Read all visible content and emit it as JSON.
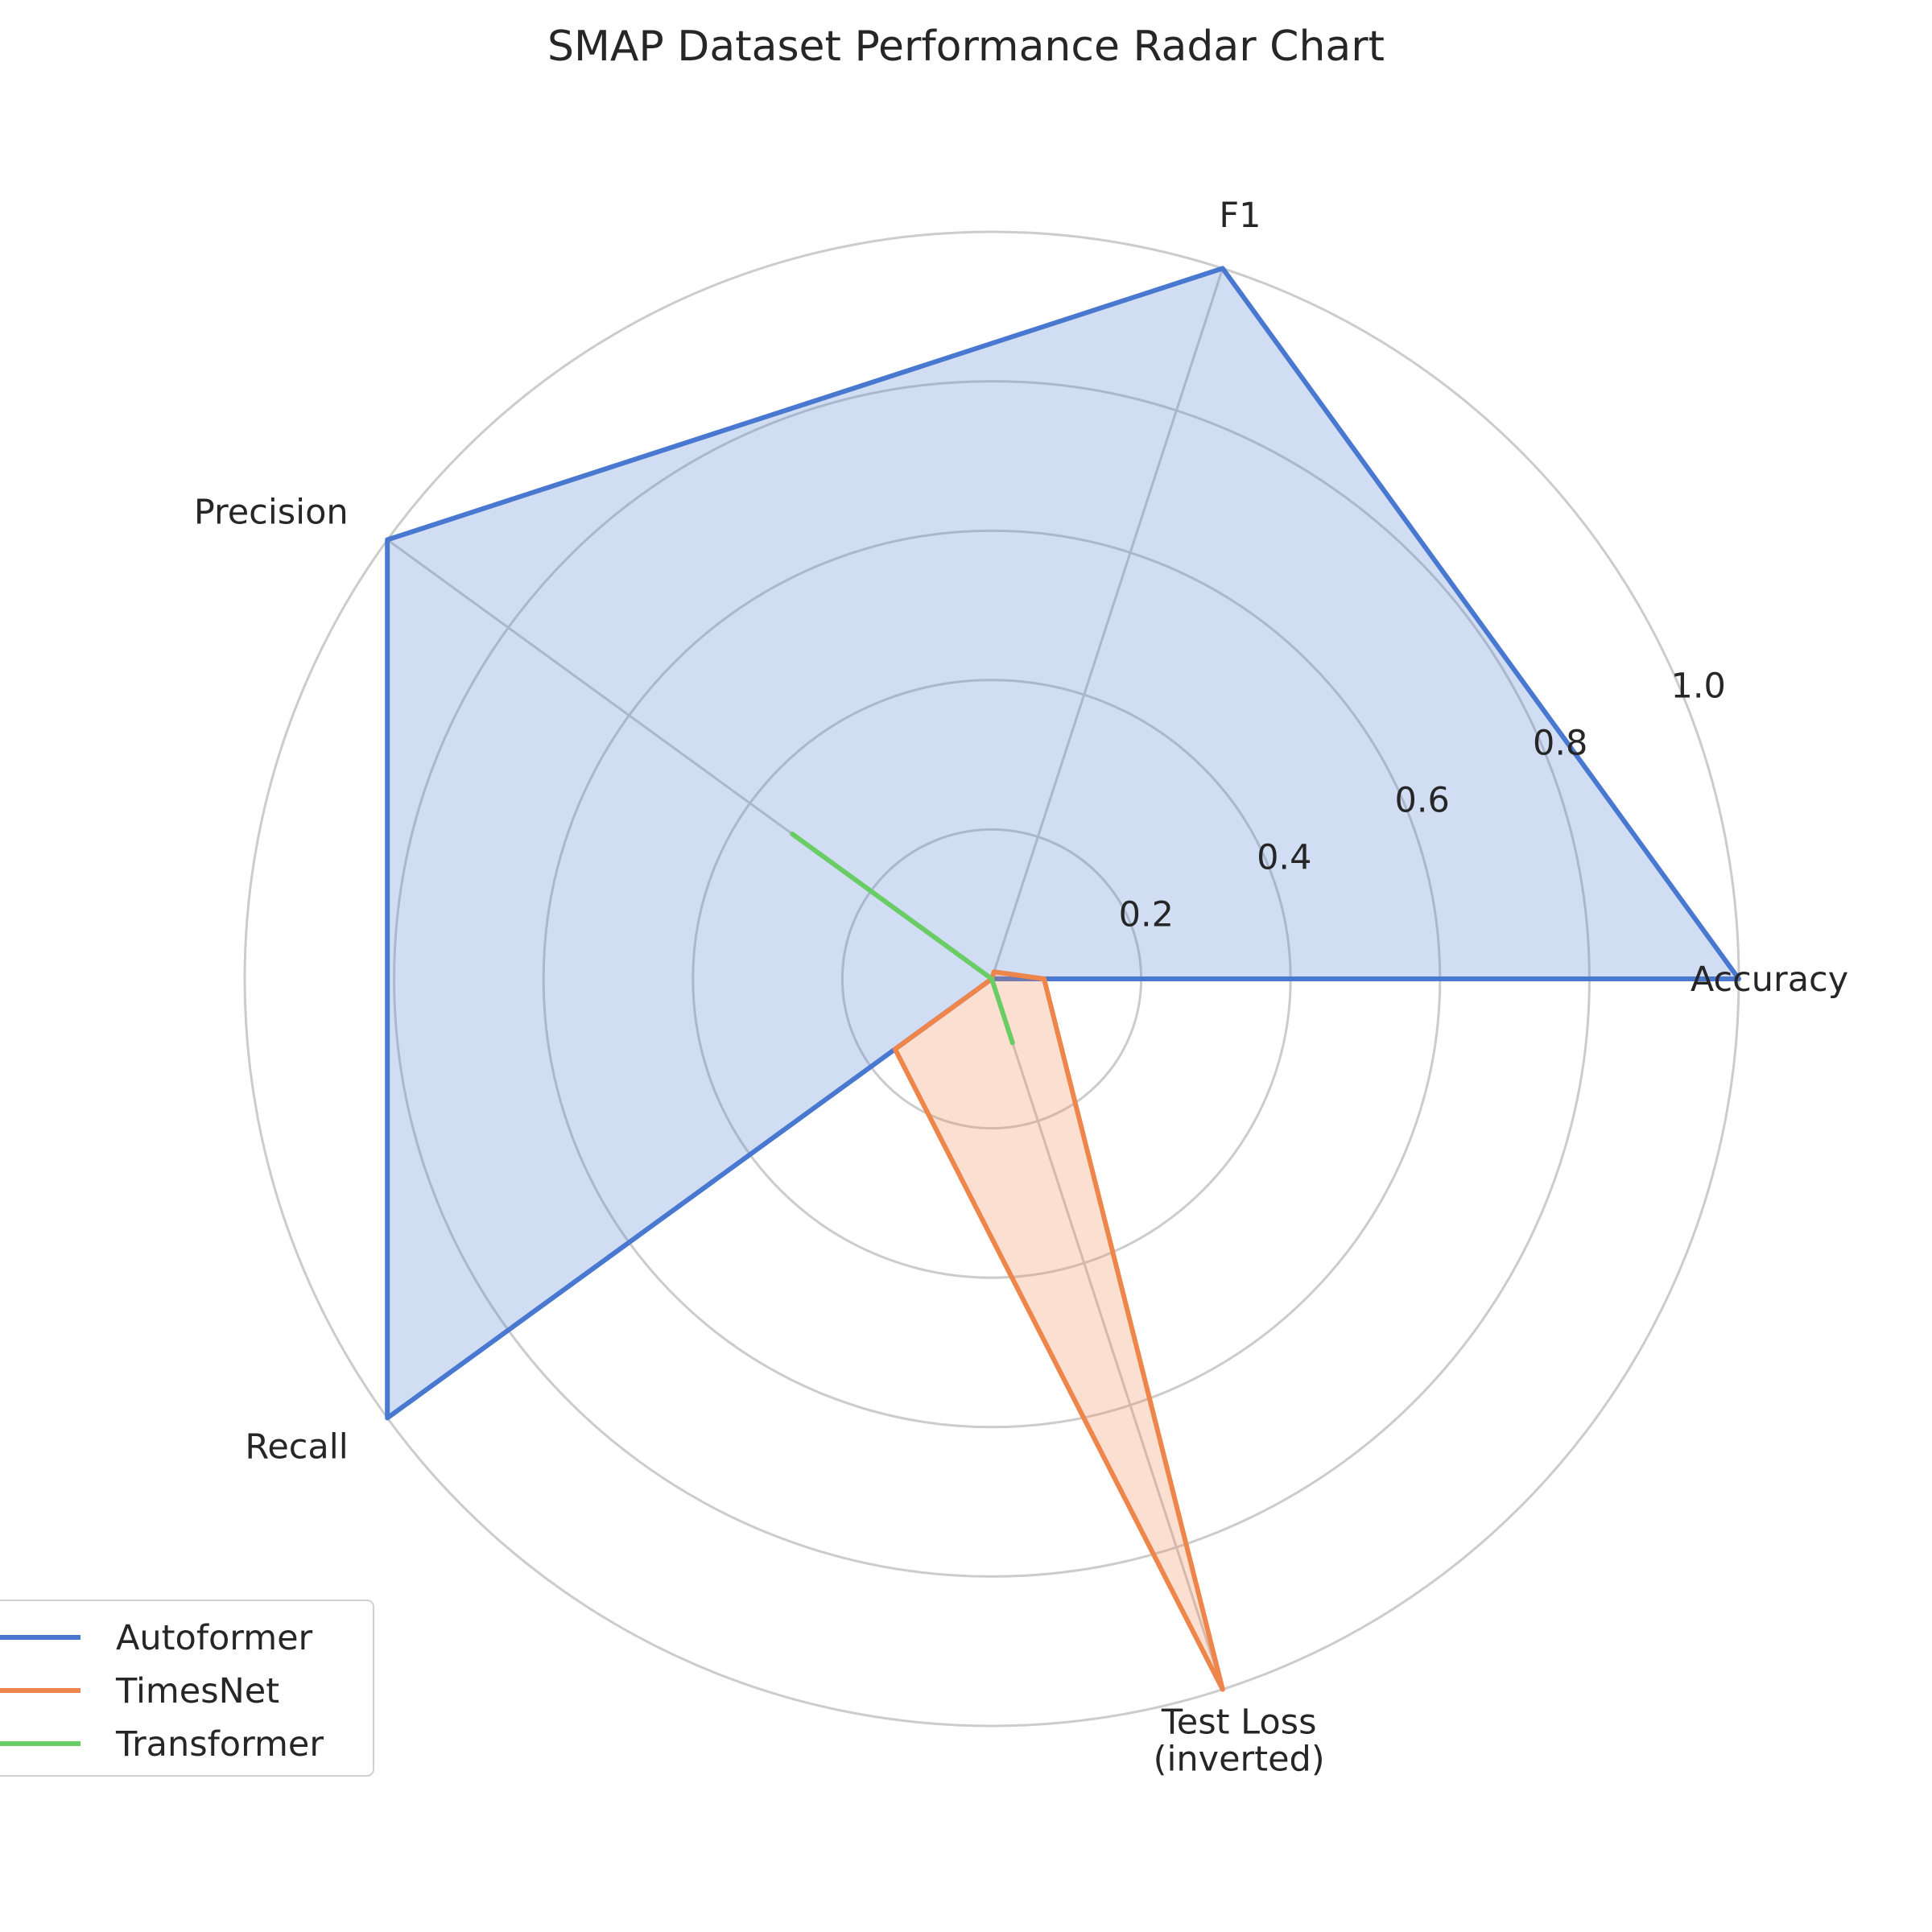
{
  "chart_data": {
    "type": "radar",
    "title": "SMAP Dataset Performance Radar Chart",
    "axes": [
      "Accuracy",
      "F1",
      "Precision",
      "Recall",
      "Test Loss\n(inverted)"
    ],
    "rlim": [
      0,
      1.0
    ],
    "rticks": [
      "0.2",
      "0.4",
      "0.6",
      "0.8",
      "1.0"
    ],
    "rtick_values": [
      0.2,
      0.4,
      0.6,
      0.8,
      1.0
    ],
    "grid": true,
    "legend_position": "lower-left",
    "series": [
      {
        "name": "Autoformer",
        "color": "#4878d0",
        "fill": true,
        "values": [
          1.0,
          1.0,
          1.0,
          1.0,
          0.0
        ]
      },
      {
        "name": "TimesNet",
        "color": "#ee854a",
        "fill": true,
        "values": [
          0.07,
          0.01,
          0.0,
          0.16,
          1.0
        ]
      },
      {
        "name": "Transformer",
        "color": "#6acc64",
        "fill": false,
        "values": [
          0.0,
          0.0,
          0.33,
          0.0,
          0.09
        ]
      }
    ],
    "grid_color": "#cccccc"
  }
}
